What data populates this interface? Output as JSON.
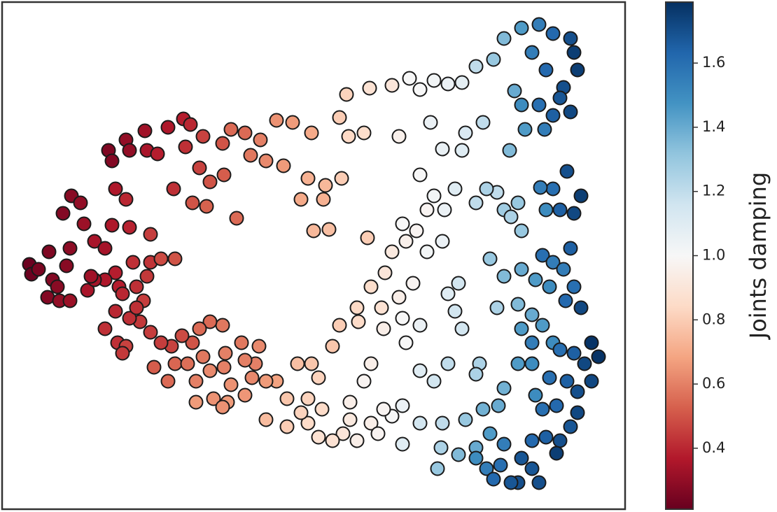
{
  "chart_data": {
    "type": "scatter",
    "xlim": [
      3,
      893
    ],
    "ylim": [
      3,
      728
    ],
    "x": [
      42,
      45,
      55,
      70,
      75,
      68,
      82,
      95,
      100,
      102,
      90,
      115,
      120,
      85,
      100,
      125,
      135,
      150,
      160,
      165,
      180,
      185,
      155,
      160,
      180,
      185,
      207,
      210,
      225,
      240,
      248,
      265,
      262,
      272,
      290,
      285,
      300,
      318,
      320,
      338,
      275,
      295,
      330,
      350,
      358,
      372,
      380,
      395,
      405,
      418,
      445,
      440,
      430,
      462,
      448,
      470,
      465,
      488,
      485,
      495,
      498,
      520,
      528,
      560,
      570,
      585,
      600,
      620,
      640,
      660,
      615,
      632,
      660,
      665,
      680,
      690,
      705,
      720,
      745,
      770,
      790,
      815,
      820,
      825,
      805,
      780,
      760,
      735,
      745,
      770,
      790,
      800,
      815,
      728,
      750,
      778,
      810,
      830,
      820,
      800,
      790,
      772,
      780,
      815,
      775,
      790,
      805,
      820,
      830,
      808,
      785,
      765,
      745,
      720,
      700,
      710,
      695,
      680,
      720,
      740,
      745,
      730,
      650,
      635,
      620,
      600,
      610,
      595,
      580,
      575,
      560,
      550,
      530,
      525,
      510,
      545,
      570,
      590,
      610,
      632,
      640,
      655,
      660,
      650,
      600,
      575,
      548,
      512,
      485,
      475,
      530,
      580,
      600,
      620,
      640,
      685,
      680,
      710,
      740,
      760,
      775,
      745,
      760,
      790,
      800,
      820,
      835,
      845,
      855,
      845,
      825,
      810,
      785,
      760,
      740,
      765,
      775,
      795,
      825,
      815,
      800,
      795,
      780,
      760,
      745,
      720,
      700,
      690,
      712,
      720,
      665,
      680,
      695,
      715,
      740,
      760,
      770,
      730,
      705,
      680,
      655,
      625,
      630,
      600,
      632,
      575,
      560,
      548,
      530,
      510,
      490,
      475,
      455,
      440,
      430,
      410,
      380,
      410,
      440,
      460,
      500,
      500,
      540,
      575,
      520,
      455,
      425,
      445,
      395,
      380,
      365,
      350,
      370,
      345,
      318,
      300,
      285,
      275,
      260,
      245,
      230,
      215,
      200,
      185,
      165,
      150,
      168,
      180,
      175,
      220,
      240,
      250,
      268,
      280,
      290,
      300,
      322,
      320,
      330,
      350,
      325,
      305,
      280,
      318,
      360,
      210,
      190,
      215,
      215,
      230,
      250,
      165,
      170,
      195,
      205,
      195,
      175,
      150,
      135,
      130
    ],
    "y": [
      353,
      339,
      346,
      371,
      331,
      306,
      321,
      351,
      376,
      451,
      426,
      441,
      411,
      301,
      301,
      316,
      386,
      376,
      409,
      461,
      446,
      406,
      516,
      501,
      531,
      516,
      544,
      516,
      511,
      549,
      461,
      521,
      561,
      553,
      536,
      491,
      471,
      526,
      481,
      419,
      441,
      436,
      546,
      541,
      509,
      531,
      501,
      559,
      494,
      556,
      541,
      476,
      446,
      446,
      401,
      403,
      466,
      476,
      563,
      596,
      536,
      541,
      605,
      609,
      536,
      619,
      603,
      616,
      611,
      613,
      556,
      518,
      516,
      541,
      636,
      556,
      646,
      676,
      691,
      696,
      683,
      676,
      656,
      631,
      606,
      631,
      656,
      601,
      581,
      581,
      566,
      591,
      571,
      516,
      546,
      546,
      486,
      451,
      426,
      431,
      461,
      463,
      431,
      376,
      366,
      356,
      346,
      321,
      291,
      301,
      321,
      331,
      346,
      336,
      361,
      456,
      461,
      441,
      431,
      441,
      401,
      421,
      461,
      431,
      451,
      481,
      431,
      401,
      386,
      411,
      371,
      341,
      321,
      391,
      291,
      291,
      306,
      326,
      371,
      386,
      311,
      326,
      261,
      286,
      266,
      276,
      261,
      271,
      266,
      236,
      211,
      241,
      201,
      186,
      211,
      211,
      196,
      291,
      296,
      281,
      266,
      261,
      241,
      241,
      231,
      226,
      211,
      241,
      221,
      186,
      171,
      186,
      191,
      211,
      211,
      166,
      146,
      151,
      141,
      121,
      101,
      83,
      106,
      101,
      76,
      96,
      111,
      146,
      151,
      176,
      131,
      91,
      61,
      66,
      41,
      61,
      41,
      41,
      46,
      76,
      81,
      61,
      91,
      126,
      126,
      151,
      136,
      146,
      126,
      101,
      111,
      101,
      106,
      126,
      141,
      121,
      131,
      161,
      161,
      146,
      156,
      131,
      111,
      96,
      186,
      191,
      211,
      211,
      186,
      186,
      211,
      216,
      236,
      241,
      266,
      271,
      261,
      241,
      251,
      236,
      241,
      256,
      271,
      276,
      286,
      261,
      241,
      236,
      226,
      206,
      186,
      211,
      211,
      186,
      221,
      201,
      226,
      206,
      181,
      166,
      156,
      161,
      156,
      149,
      191,
      336,
      356,
      356,
      396,
      361,
      361,
      341,
      321,
      321,
      301,
      291,
      311,
      331,
      331,
      336
    ],
    "color_values": [
      0.22,
      0.22,
      0.25,
      0.26,
      0.27,
      0.27,
      0.28,
      0.28,
      0.29,
      0.28,
      0.27,
      0.3,
      0.32,
      0.3,
      0.32,
      0.35,
      0.35,
      0.34,
      0.36,
      0.36,
      0.4,
      0.39,
      0.26,
      0.27,
      0.3,
      0.3,
      0.33,
      0.35,
      0.38,
      0.36,
      0.42,
      0.42,
      0.38,
      0.4,
      0.46,
      0.46,
      0.5,
      0.5,
      0.52,
      0.55,
      0.5,
      0.53,
      0.55,
      0.55,
      0.58,
      0.6,
      0.62,
      0.64,
      0.66,
      0.66,
      0.7,
      0.72,
      0.7,
      0.72,
      0.74,
      0.76,
      0.74,
      0.8,
      0.8,
      0.82,
      0.84,
      0.86,
      0.88,
      0.9,
      0.96,
      1.0,
      1.0,
      1.02,
      1.05,
      1.08,
      1.05,
      1.06,
      1.1,
      1.12,
      1.2,
      1.2,
      1.3,
      1.35,
      1.45,
      1.55,
      1.62,
      1.7,
      1.75,
      1.75,
      1.7,
      1.62,
      1.55,
      1.4,
      1.5,
      1.6,
      1.65,
      1.68,
      1.72,
      1.35,
      1.45,
      1.55,
      1.7,
      1.75,
      1.72,
      1.65,
      1.6,
      1.55,
      1.5,
      1.65,
      1.6,
      1.55,
      1.55,
      1.6,
      1.72,
      1.62,
      1.5,
      1.45,
      1.4,
      1.35,
      1.3,
      1.2,
      1.25,
      1.2,
      1.28,
      1.3,
      1.3,
      1.25,
      1.1,
      1.05,
      1.02,
      1.0,
      0.98,
      0.98,
      0.96,
      1.0,
      0.92,
      0.9,
      0.86,
      0.8,
      0.84,
      0.88,
      0.95,
      0.98,
      1.02,
      1.05,
      1.1,
      1.15,
      1.15,
      1.15,
      1.05,
      1.0,
      0.95,
      0.85,
      0.8,
      0.78,
      0.95,
      1.0,
      1.1,
      1.15,
      1.2,
      1.25,
      1.25,
      1.25,
      1.35,
      1.4,
      1.45,
      1.45,
      1.55,
      1.5,
      1.6,
      1.65,
      1.72,
      1.78,
      1.78,
      1.72,
      1.7,
      1.65,
      1.6,
      1.5,
      1.45,
      1.5,
      1.6,
      1.62,
      1.72,
      1.68,
      1.7,
      1.75,
      1.65,
      1.62,
      1.68,
      1.55,
      1.45,
      1.38,
      1.4,
      1.38,
      1.3,
      1.4,
      1.55,
      1.6,
      1.7,
      1.68,
      1.7,
      1.68,
      1.62,
      1.5,
      1.35,
      1.3,
      1.25,
      1.15,
      1.2,
      1.05,
      1.0,
      0.98,
      0.95,
      0.95,
      0.9,
      0.88,
      0.88,
      0.85,
      0.82,
      0.8,
      0.75,
      0.78,
      0.82,
      0.85,
      0.95,
      0.92,
      0.98,
      1.1,
      0.98,
      0.82,
      0.76,
      0.78,
      0.68,
      0.66,
      0.6,
      0.6,
      0.62,
      0.58,
      0.58,
      0.55,
      0.55,
      0.5,
      0.48,
      0.46,
      0.45,
      0.45,
      0.44,
      0.42,
      0.4,
      0.42,
      0.42,
      0.46,
      0.44,
      0.52,
      0.55,
      0.54,
      0.56,
      0.6,
      0.58,
      0.62,
      0.6,
      0.6,
      0.64,
      0.65,
      0.66,
      0.64,
      0.66,
      0.64,
      0.62,
      0.44,
      0.42,
      0.43,
      0.45,
      0.48,
      0.5,
      0.38,
      0.38,
      0.42,
      0.45,
      0.42,
      0.4,
      0.36,
      0.34,
      0.33
    ],
    "colormap": [
      "#67001f",
      "#b2182b",
      "#d6604d",
      "#f4a582",
      "#fddbc7",
      "#f7f7f7",
      "#d1e5f0",
      "#92c5de",
      "#4393c3",
      "#2166ac",
      "#053061"
    ],
    "edgecolor": "#1a1a1a",
    "colorbar": {
      "label": "Joints damping",
      "lim": [
        0.21,
        1.79
      ],
      "ticks": [
        0.4,
        0.6,
        0.8,
        {
          "value": 1,
          "label": "1.0"
        },
        1.2,
        1.4,
        1.6
      ]
    }
  }
}
